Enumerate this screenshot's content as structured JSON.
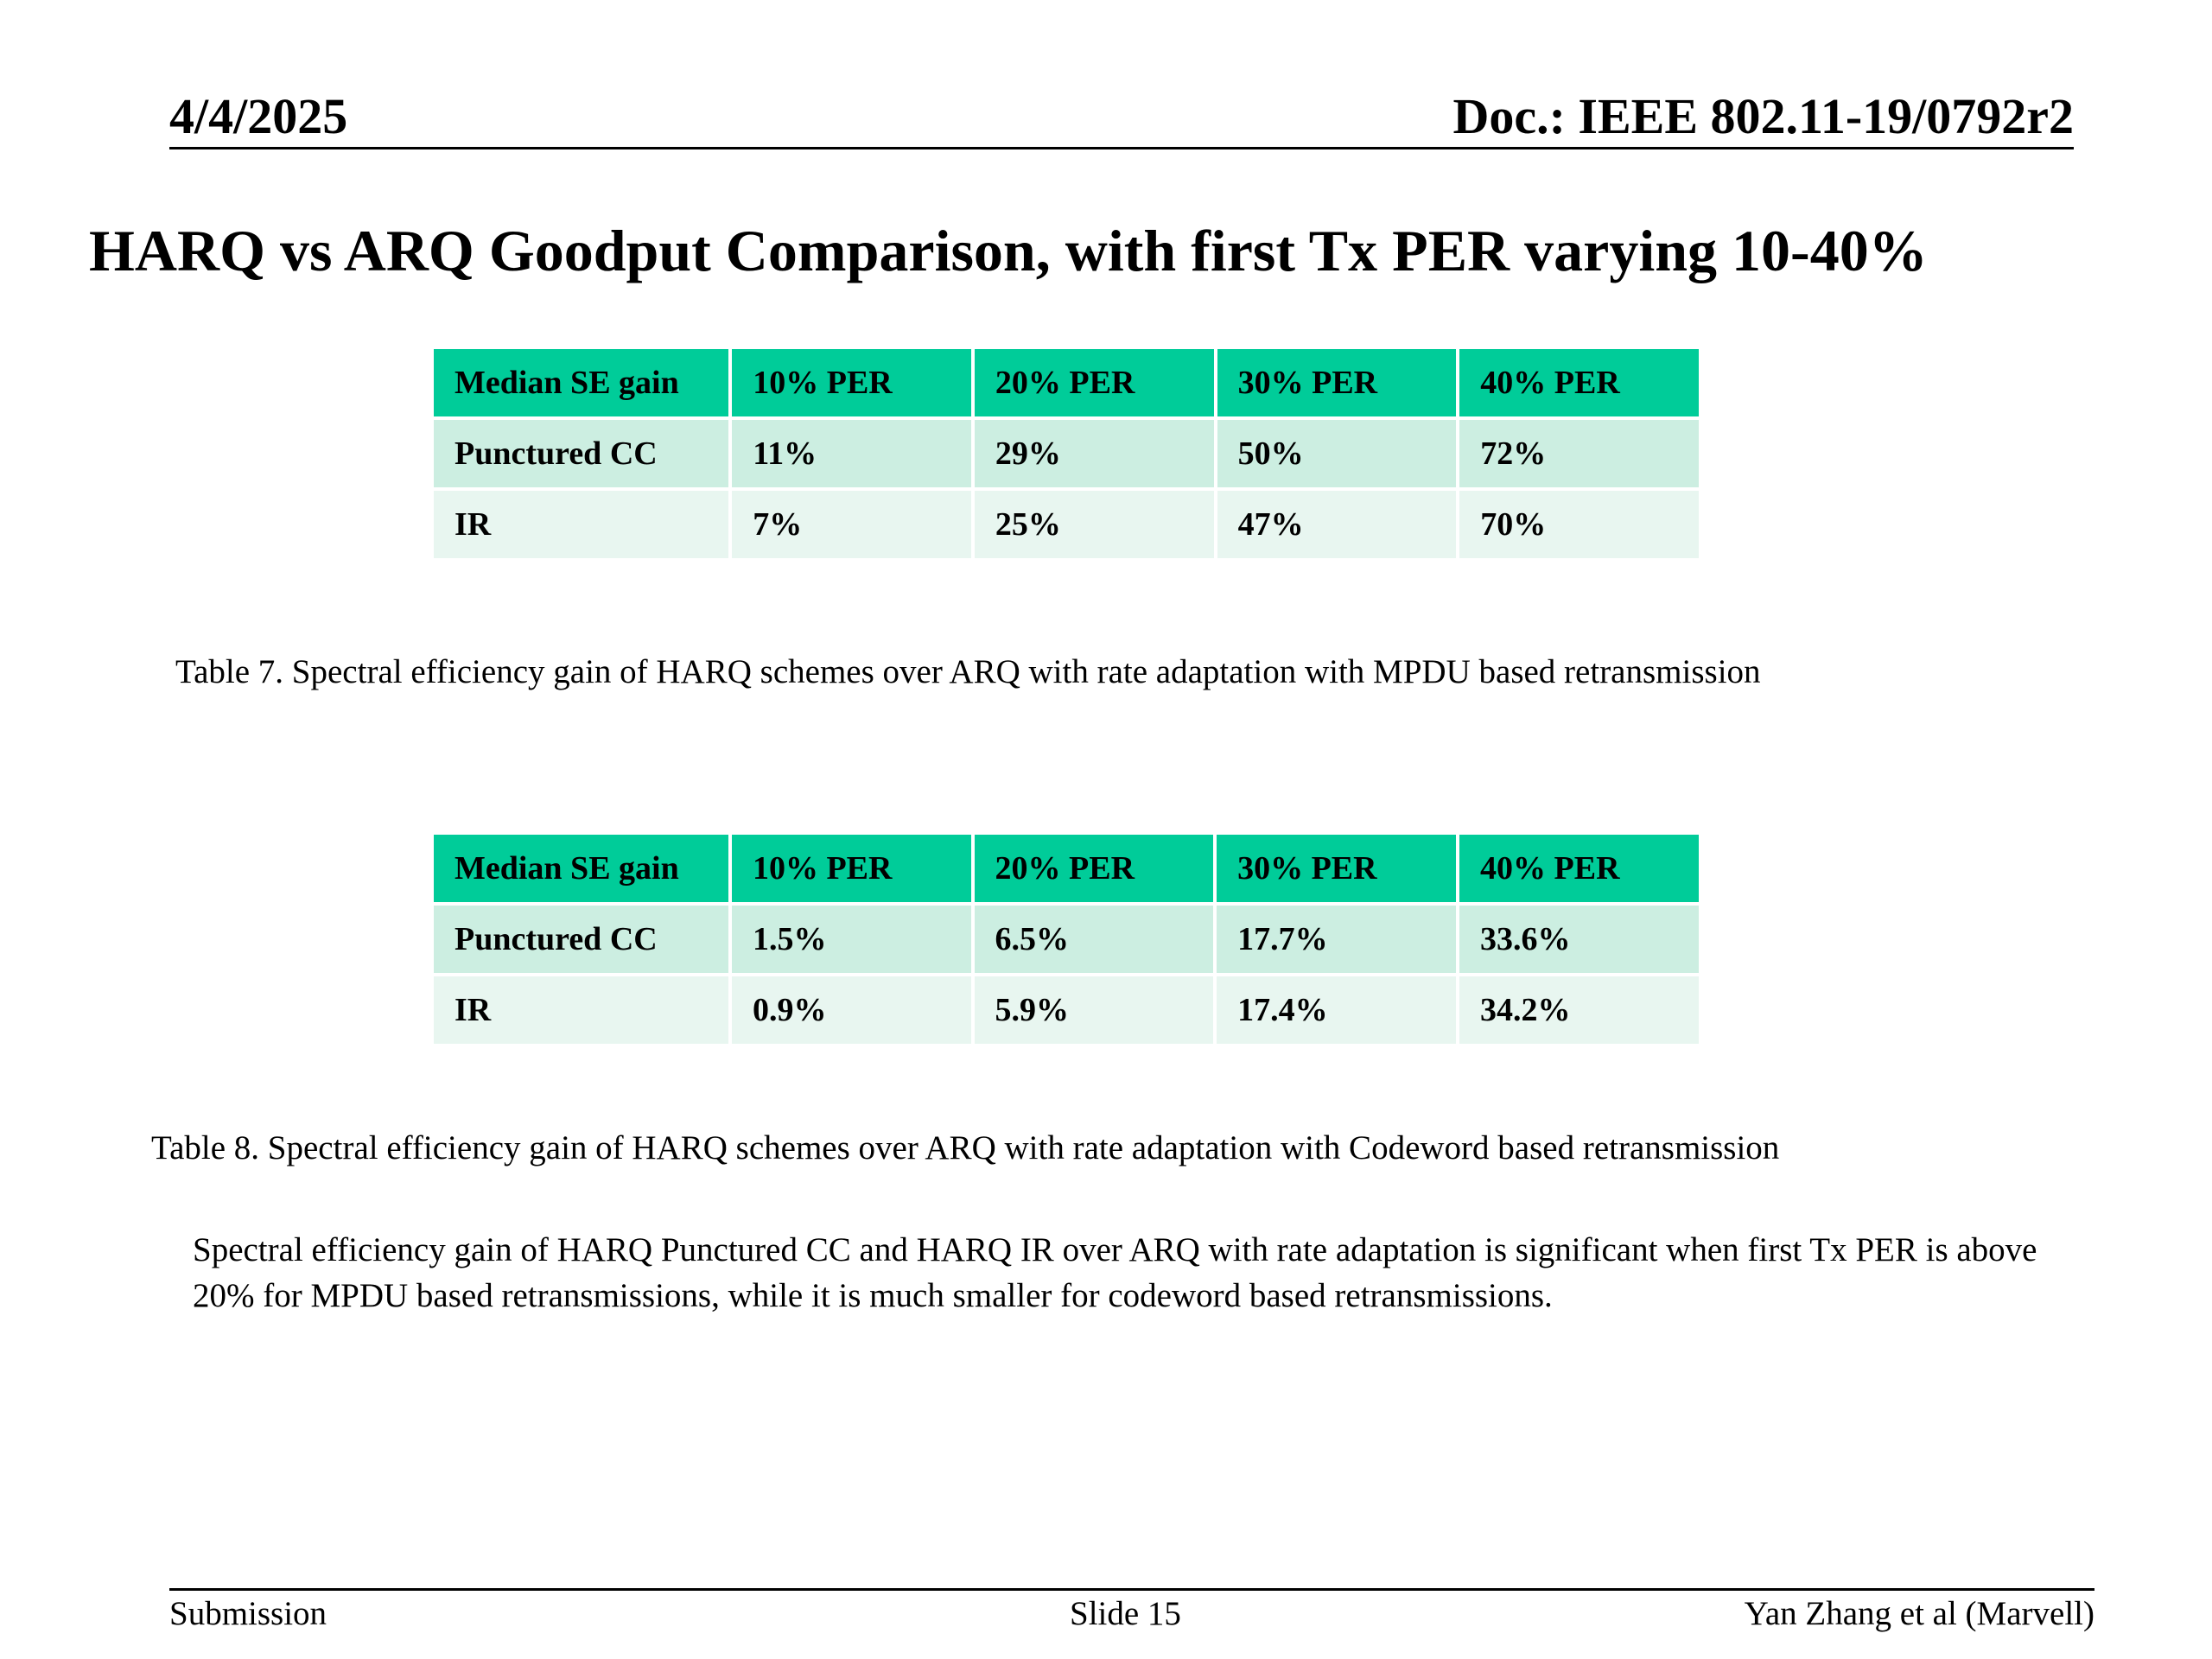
{
  "header": {
    "date": "4/4/2025",
    "doc": "Doc.: IEEE 802.11-19/0792r2"
  },
  "title": "HARQ vs ARQ Goodput Comparison, with first Tx PER varying 10-40%",
  "table7": {
    "columns": [
      "Median SE gain",
      "10% PER",
      "20% PER",
      "30% PER",
      "40% PER"
    ],
    "rows": [
      [
        "Punctured CC",
        "11%",
        "29%",
        "50%",
        "72%"
      ],
      [
        "IR",
        "7%",
        "25%",
        "47%",
        "70%"
      ]
    ],
    "caption": "Table 7. Spectral efficiency gain of HARQ schemes over ARQ with rate adaptation with MPDU based retransmission"
  },
  "table8": {
    "columns": [
      "Median SE gain",
      "10% PER",
      "20% PER",
      "30% PER",
      "40% PER"
    ],
    "rows": [
      [
        "Punctured CC",
        "1.5%",
        "6.5%",
        "17.7%",
        "33.6%"
      ],
      [
        "IR",
        "0.9%",
        "5.9%",
        "17.4%",
        "34.2%"
      ]
    ],
    "caption": "Table 8. Spectral efficiency gain of HARQ schemes over ARQ with rate adaptation with Codeword based retransmission"
  },
  "summary": "Spectral efficiency gain of HARQ Punctured CC and HARQ IR over ARQ with rate adaptation is significant when first Tx PER is above 20% for MPDU based retransmissions, while it is much smaller for codeword based retransmissions.",
  "footer": {
    "left": "Submission",
    "center": "Slide 15",
    "right": "Yan Zhang et al (Marvell)"
  },
  "colors": {
    "header_cell": "#00cc99",
    "row_odd": "#cceee1",
    "row_even": "#e8f6f0"
  }
}
